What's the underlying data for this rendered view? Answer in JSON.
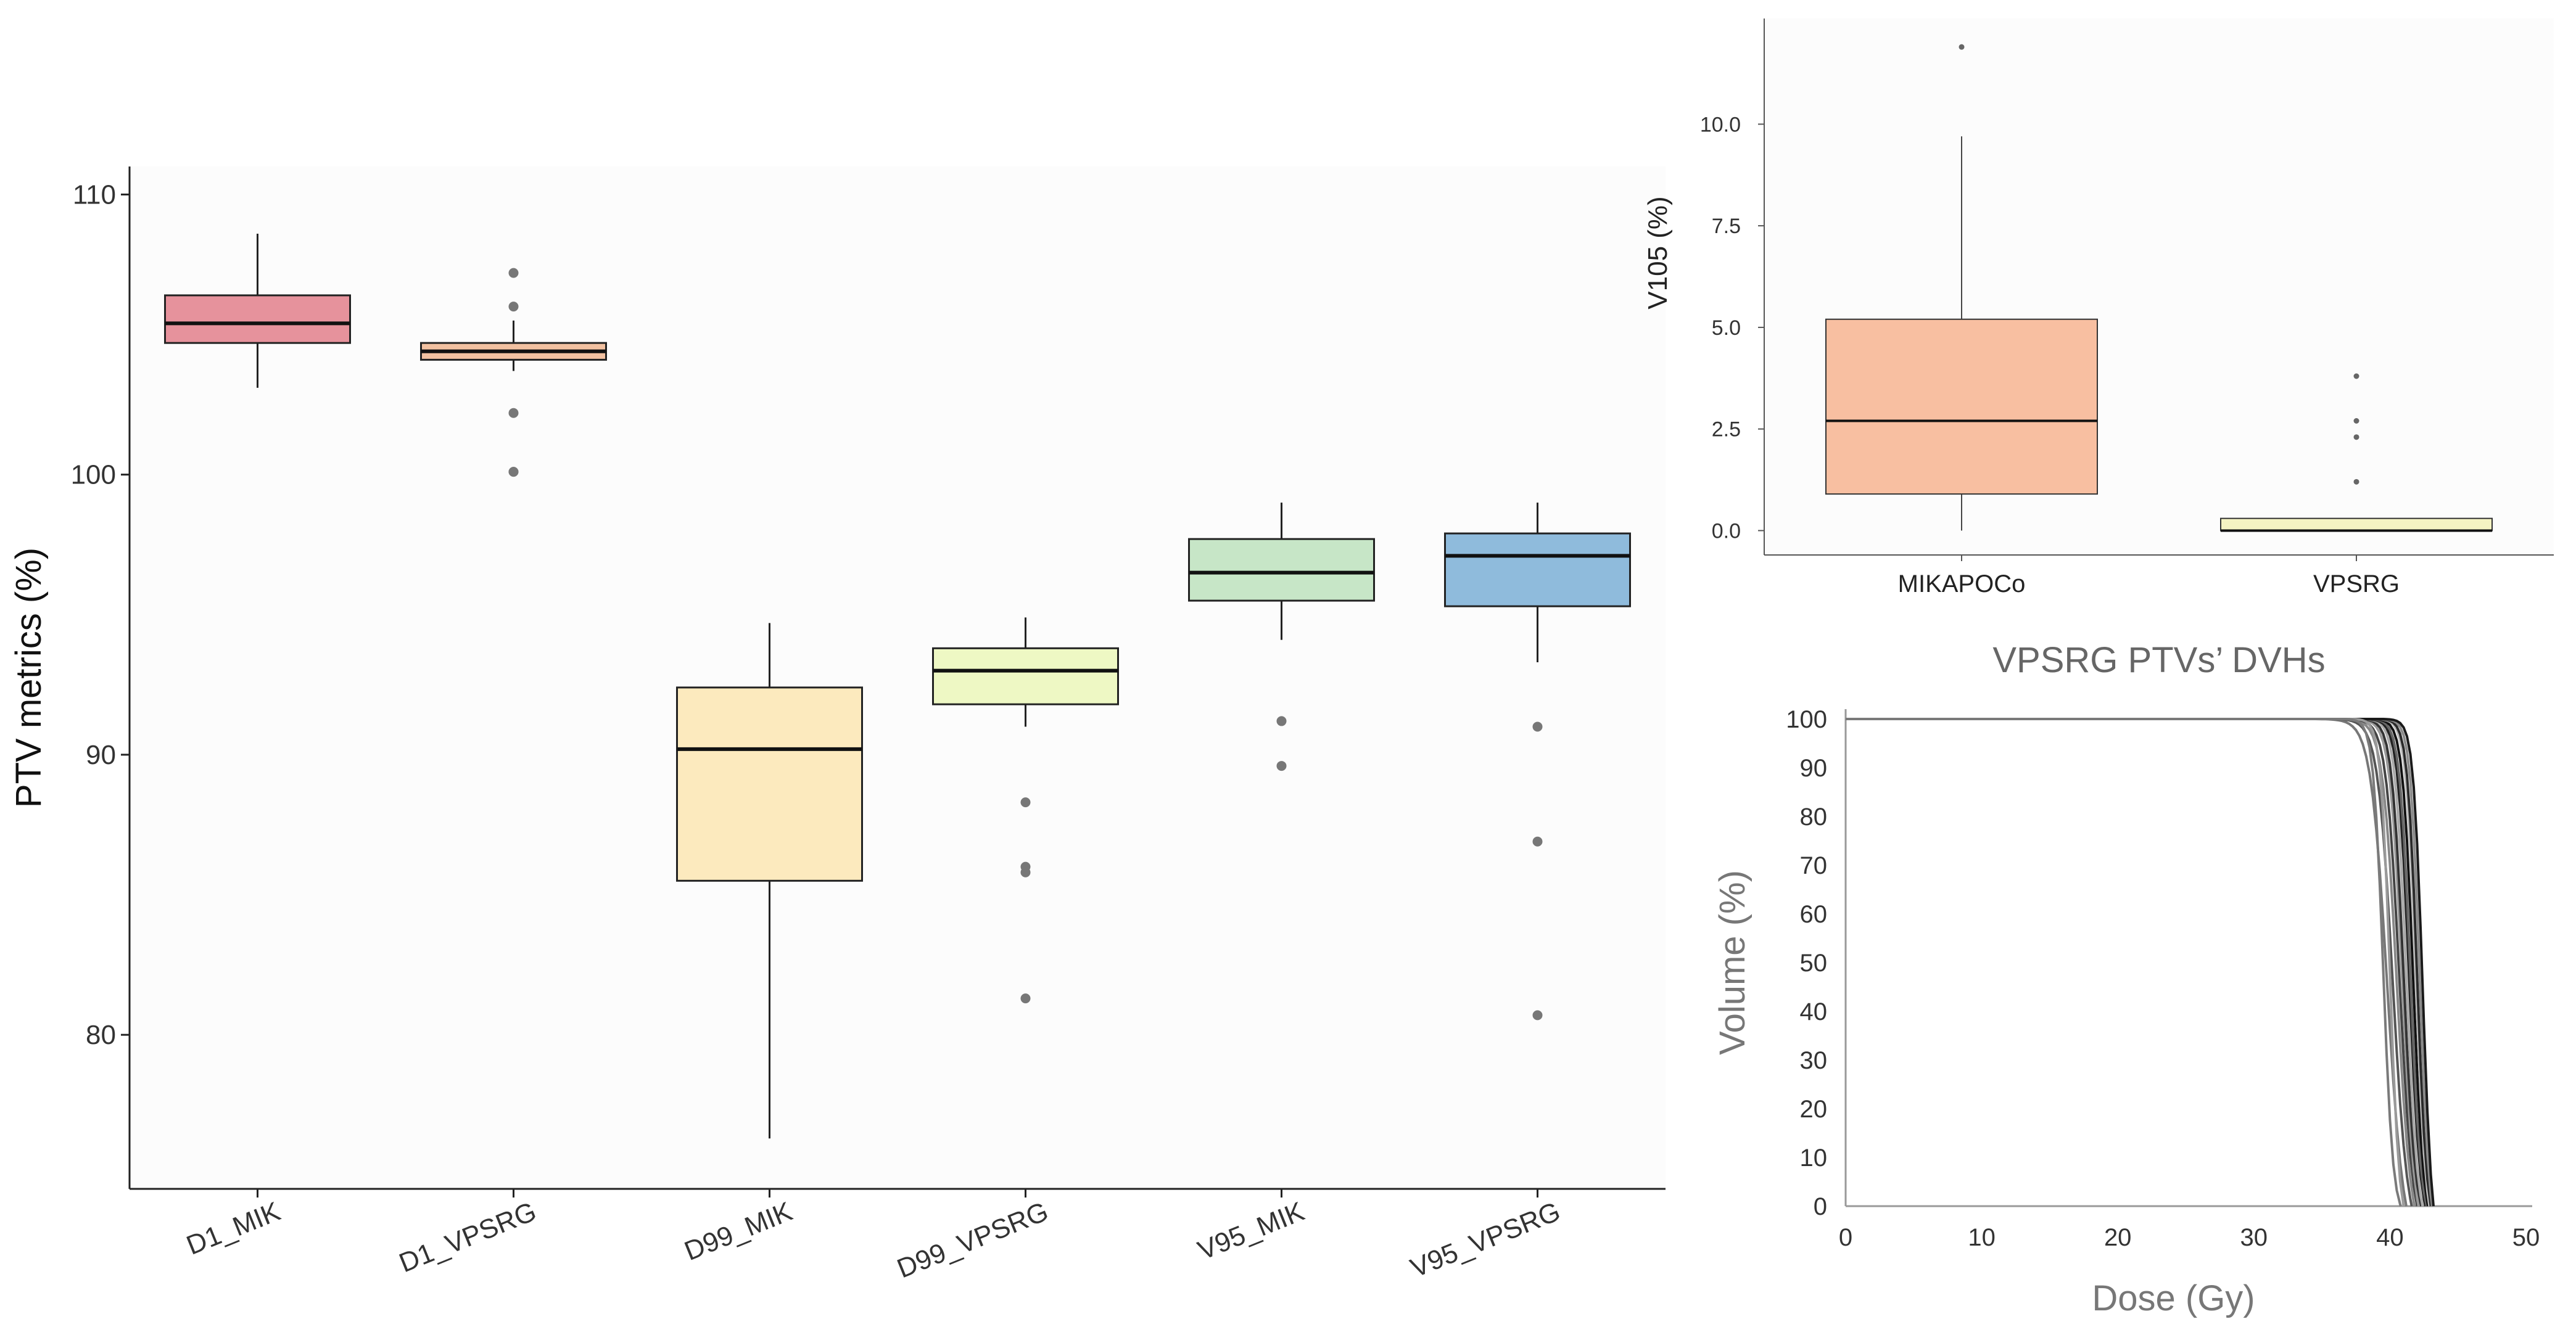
{
  "chart_data": [
    {
      "type": "boxplot",
      "ylabel": "PTV metrics (%)",
      "xlabel": "",
      "ylim": [
        74.5,
        111
      ],
      "yticks": [
        80,
        90,
        100,
        110
      ],
      "categories": [
        "D1_MIK",
        "D1_VPSRG",
        "D99_MIK",
        "D99_VPSRG",
        "V95_MIK",
        "V95_VPSRG"
      ],
      "boxes": [
        {
          "min": 103.1,
          "q1": 104.7,
          "median": 105.4,
          "q3": 106.4,
          "max": 108.6,
          "outliers": [],
          "color": "#E6929C"
        },
        {
          "min": 103.7,
          "q1": 104.1,
          "median": 104.4,
          "q3": 104.7,
          "max": 105.5,
          "outliers": [
            107.2,
            106.0,
            102.2,
            100.1,
            100.1
          ],
          "color": "#F2C1A1"
        },
        {
          "min": 76.3,
          "q1": 85.5,
          "median": 90.2,
          "q3": 92.4,
          "max": 94.7,
          "outliers": [],
          "color": "#FCEABE"
        },
        {
          "min": 91.0,
          "q1": 91.8,
          "median": 93.0,
          "q3": 93.8,
          "max": 94.9,
          "outliers": [
            88.3,
            86.0,
            85.8,
            81.3
          ],
          "color": "#EEF8C4"
        },
        {
          "min": 94.1,
          "q1": 95.5,
          "median": 96.5,
          "q3": 97.7,
          "max": 99.0,
          "outliers": [
            91.2,
            89.6
          ],
          "color": "#C7E6C7"
        },
        {
          "min": 93.3,
          "q1": 95.3,
          "median": 97.1,
          "q3": 97.9,
          "max": 99.0,
          "outliers": [
            91.0,
            86.9,
            80.7
          ],
          "color": "#8FBBDC"
        }
      ]
    },
    {
      "type": "boxplot",
      "ylabel": "V105 (%)",
      "xlabel": "",
      "ylim": [
        -0.6,
        12.6
      ],
      "yticks": [
        "0.0",
        "2.5",
        "5.0",
        "7.5",
        "10.0"
      ],
      "categories": [
        "MIKAPOCo",
        "VPSRG"
      ],
      "boxes": [
        {
          "min": 0.0,
          "q1": 0.9,
          "median": 2.7,
          "q3": 5.2,
          "max": 9.7,
          "outliers": [
            11.9
          ],
          "color": "#F8BFA1"
        },
        {
          "min": 0.0,
          "q1": 0.0,
          "median": 0.0,
          "q3": 0.3,
          "max": 0.3,
          "outliers": [
            3.8,
            2.7,
            2.3,
            1.2
          ],
          "color": "#F5F3C2"
        }
      ]
    },
    {
      "type": "line",
      "title": "VPSRG PTVs’ DVHs",
      "xlabel": "Dose (Gy)",
      "ylabel": "Volume (%)",
      "xlim": [
        0,
        50
      ],
      "ylim": [
        0,
        100
      ],
      "xticks": [
        0,
        10,
        20,
        30,
        40,
        50
      ],
      "yticks": [
        0,
        10,
        20,
        30,
        40,
        50,
        60,
        70,
        80,
        90,
        100
      ],
      "series_description": "Cumulative DVH curves, flat at 100% until ~35 Gy, falling steeply to 0% between ~39 and ~43 Gy",
      "curves": [
        {
          "shoulder": 34.5,
          "d50": 39.8,
          "end": 41.2,
          "color": "#777777"
        },
        {
          "shoulder": 35.5,
          "d50": 40.2,
          "end": 41.6,
          "color": "#555555"
        },
        {
          "shoulder": 36.0,
          "d50": 40.5,
          "end": 41.8,
          "color": "#888888"
        },
        {
          "shoulder": 36.5,
          "d50": 40.7,
          "end": 42.0,
          "color": "#444444"
        },
        {
          "shoulder": 37.0,
          "d50": 40.9,
          "end": 42.1,
          "color": "#999999"
        },
        {
          "shoulder": 37.5,
          "d50": 41.0,
          "end": 42.3,
          "color": "#333333"
        },
        {
          "shoulder": 37.8,
          "d50": 41.2,
          "end": 42.4,
          "color": "#aaaaaa"
        },
        {
          "shoulder": 38.0,
          "d50": 41.4,
          "end": 42.6,
          "color": "#222222"
        },
        {
          "shoulder": 38.3,
          "d50": 41.5,
          "end": 42.7,
          "color": "#666666"
        },
        {
          "shoulder": 38.5,
          "d50": 41.7,
          "end": 42.8,
          "color": "#111111"
        },
        {
          "shoulder": 38.8,
          "d50": 41.9,
          "end": 42.9,
          "color": "#bbbbbb"
        },
        {
          "shoulder": 39.0,
          "d50": 42.0,
          "end": 43.0,
          "color": "#2a2a2a"
        },
        {
          "shoulder": 39.2,
          "d50": 42.2,
          "end": 43.1,
          "color": "#8a8a8a"
        },
        {
          "shoulder": 39.4,
          "d50": 42.4,
          "end": 43.2,
          "color": "#1a1a1a"
        },
        {
          "shoulder": 37.2,
          "d50": 40.0,
          "end": 41.0,
          "color": "#9a9a9a"
        },
        {
          "shoulder": 36.8,
          "d50": 39.5,
          "end": 40.8,
          "color": "#7a7a7a"
        }
      ]
    }
  ]
}
